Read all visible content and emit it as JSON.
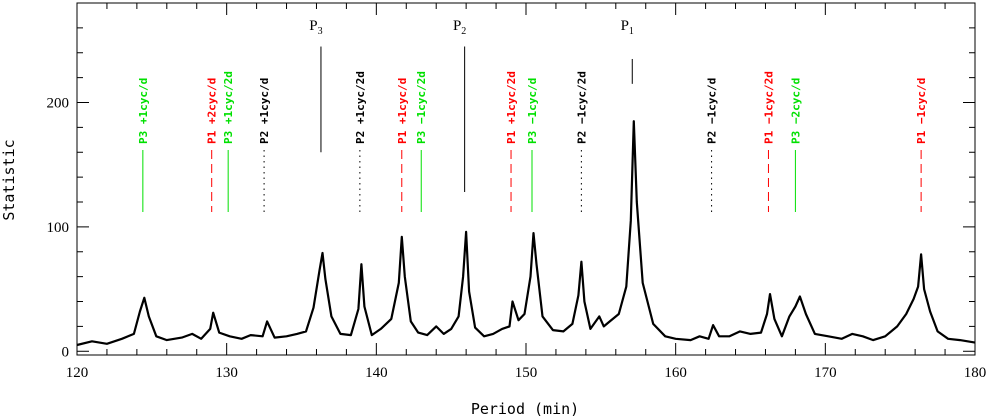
{
  "chart_data": {
    "type": "line",
    "xlabel": "Period (min)",
    "ylabel": "Statistic",
    "xlim": [
      120,
      180
    ],
    "ylim": [
      -3,
      280
    ],
    "x_ticks": [
      120,
      130,
      140,
      150,
      160,
      170,
      180
    ],
    "y_ticks": [
      0,
      100,
      200
    ],
    "grid": false,
    "colors": {
      "black": "#000000",
      "red": "#ff0000",
      "green": "#00e000"
    },
    "series": [
      {
        "x": [
          120,
          121,
          122,
          123,
          123.8,
          124.2,
          124.5,
          124.8,
          125.3,
          126,
          127,
          127.7,
          128.3,
          128.9,
          129.1,
          129.5,
          130.2,
          131,
          131.6,
          132.4,
          132.7,
          133.2,
          134,
          134.7,
          135.3,
          135.8,
          136.2,
          136.4,
          136.6,
          137,
          137.6,
          138.3,
          138.8,
          139.0,
          139.2,
          139.7,
          140.3,
          141.0,
          141.5,
          141.7,
          141.9,
          142.3,
          142.8,
          143.4,
          144.0,
          144.5,
          145.0,
          145.5,
          145.8,
          146.0,
          146.2,
          146.6,
          147.2,
          147.8,
          148.4,
          148.9,
          149.1,
          149.5,
          149.9,
          150.3,
          150.5,
          150.7,
          151.1,
          151.8,
          152.5,
          153.1,
          153.5,
          153.7,
          153.9,
          154.3,
          154.9,
          155.2,
          155.6,
          156.2,
          156.7,
          157.0,
          157.2,
          157.4,
          157.8,
          158.5,
          159.3,
          160,
          161,
          161.6,
          162.2,
          162.5,
          162.9,
          163.6,
          164.3,
          165.0,
          165.7,
          166.1,
          166.3,
          166.6,
          167.1,
          167.6,
          168.0,
          168.3,
          168.7,
          169.3,
          170.2,
          171.1,
          171.8,
          172.5,
          173.2,
          174.0,
          174.8,
          175.4,
          175.9,
          176.2,
          176.4,
          176.6,
          177.0,
          177.5,
          178.2,
          179,
          180
        ],
        "y": [
          5,
          8,
          6,
          10,
          14,
          32,
          43,
          28,
          12,
          9,
          11,
          14,
          10,
          18,
          31,
          15,
          12,
          10,
          13,
          12,
          24,
          11,
          12,
          14,
          16,
          35,
          65,
          79,
          58,
          28,
          14,
          13,
          34,
          70,
          36,
          13,
          18,
          26,
          55,
          92,
          60,
          24,
          15,
          13,
          20,
          14,
          18,
          28,
          60,
          96,
          48,
          19,
          12,
          14,
          18,
          20,
          40,
          25,
          30,
          60,
          95,
          70,
          28,
          17,
          16,
          22,
          45,
          72,
          40,
          18,
          28,
          20,
          24,
          30,
          52,
          105,
          185,
          120,
          55,
          22,
          12,
          10,
          9,
          12,
          10,
          21,
          12,
          12,
          16,
          14,
          15,
          30,
          46,
          26,
          12,
          28,
          36,
          44,
          30,
          14,
          12,
          10,
          14,
          12,
          9,
          12,
          20,
          30,
          42,
          52,
          78,
          50,
          32,
          16,
          10,
          9,
          7
        ]
      }
    ],
    "peak_markers": [
      {
        "x": 136.3,
        "label": "P",
        "sub": "3",
        "line_top": 245,
        "line_bottom": 160
      },
      {
        "x": 145.9,
        "label": "P",
        "sub": "2",
        "line_top": 245,
        "line_bottom": 128
      },
      {
        "x": 157.1,
        "label": "P",
        "sub": "1",
        "line_top": 235,
        "line_bottom": 215
      }
    ],
    "annotations": [
      {
        "x": 124.4,
        "text": "P3 +1cyc/d",
        "color": "green",
        "style": "solid"
      },
      {
        "x": 129.0,
        "text": "P1 +2cyc/d",
        "color": "red",
        "style": "dashed"
      },
      {
        "x": 130.1,
        "text": "P3 +1cyc/2d",
        "color": "green",
        "style": "solid"
      },
      {
        "x": 132.5,
        "text": "P2 +1cyc/d",
        "color": "black",
        "style": "dotted"
      },
      {
        "x": 138.9,
        "text": "P2 +1cyc/2d",
        "color": "black",
        "style": "dotted"
      },
      {
        "x": 141.7,
        "text": "P1 +1cyc/d",
        "color": "red",
        "style": "dashed"
      },
      {
        "x": 143.0,
        "text": "P3 −1cyc/2d",
        "color": "green",
        "style": "solid"
      },
      {
        "x": 149.0,
        "text": "P1 +1cyc/2d",
        "color": "red",
        "style": "dashed"
      },
      {
        "x": 150.4,
        "text": "P3 −1cyc/d",
        "color": "green",
        "style": "solid"
      },
      {
        "x": 153.7,
        "text": "P2 −1cyc/2d",
        "color": "black",
        "style": "dotted"
      },
      {
        "x": 162.4,
        "text": "P2 −1cyc/d",
        "color": "black",
        "style": "dotted"
      },
      {
        "x": 166.2,
        "text": "P1 −1cyc/2d",
        "color": "red",
        "style": "dashed"
      },
      {
        "x": 168.0,
        "text": "P3 −2cyc/d",
        "color": "green",
        "style": "solid"
      },
      {
        "x": 176.4,
        "text": "P1 −1cyc/d",
        "color": "red",
        "style": "dashed"
      }
    ]
  }
}
